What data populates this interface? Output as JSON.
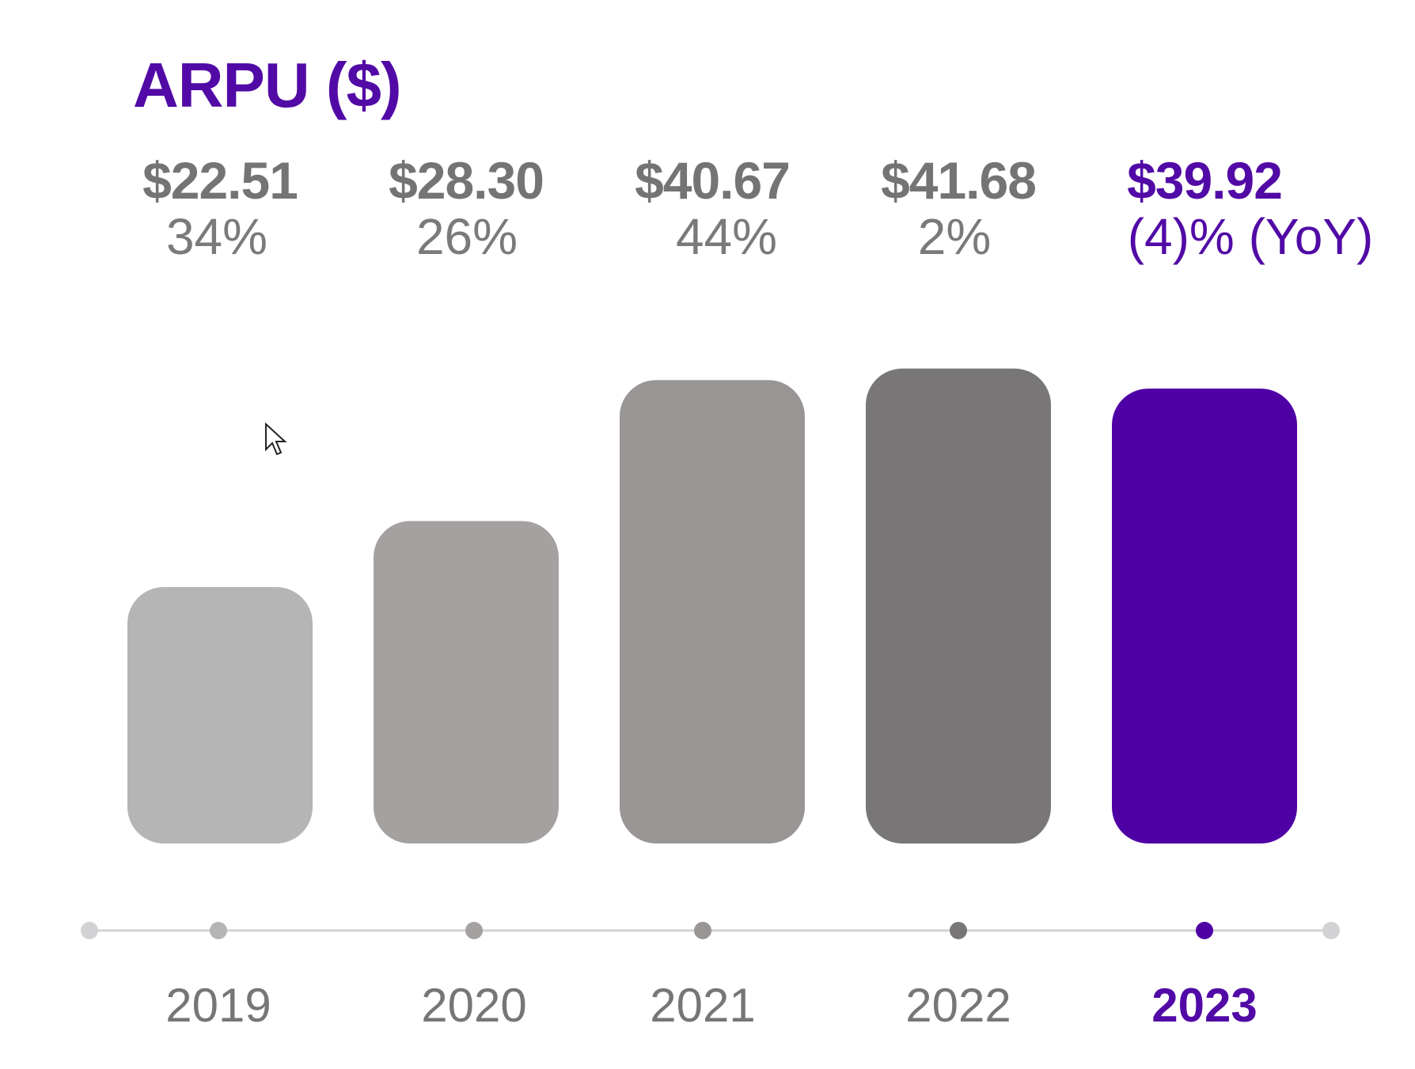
{
  "chart_data": {
    "type": "bar",
    "title": "ARPU ($)",
    "categories": [
      "2019",
      "2020",
      "2021",
      "2022",
      "2023"
    ],
    "values": [
      22.51,
      28.3,
      40.67,
      41.68,
      39.92
    ],
    "value_labels": [
      "$22.51",
      "$28.30",
      "$40.67",
      "$41.68",
      "$39.92"
    ],
    "growth_labels": [
      "34%",
      "26%",
      "44%",
      "2%",
      "(4)% (YoY)"
    ],
    "highlight_index": 4,
    "grid": false,
    "colors": [
      "#b6b5b6",
      "#a4a1a0",
      "#989594",
      "#787677",
      "#4f00a5"
    ],
    "text_color": "#747474",
    "accent_color": "#520aa6",
    "timeline_end_color": "#d2d2d4"
  }
}
